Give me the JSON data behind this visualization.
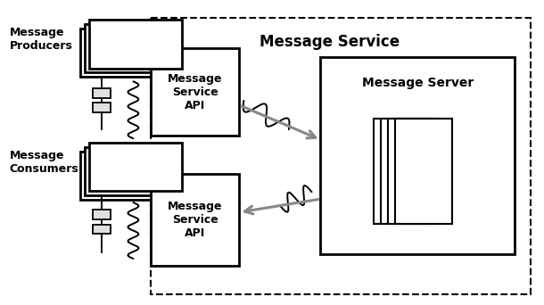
{
  "bg_color": "#ffffff",
  "fig_width": 6.1,
  "fig_height": 3.42,
  "dpi": 100,
  "message_service_label": "Message Service",
  "message_producers_label": "Message\nProducers",
  "message_consumers_label": "Message\nConsumers",
  "api_top_label": "Message\nService\nAPI",
  "api_bottom_label": "Message\nService\nAPI",
  "server_label": "Message Server",
  "line_color": "#000000",
  "arrow_color": "#888888",
  "text_color": "#000000"
}
